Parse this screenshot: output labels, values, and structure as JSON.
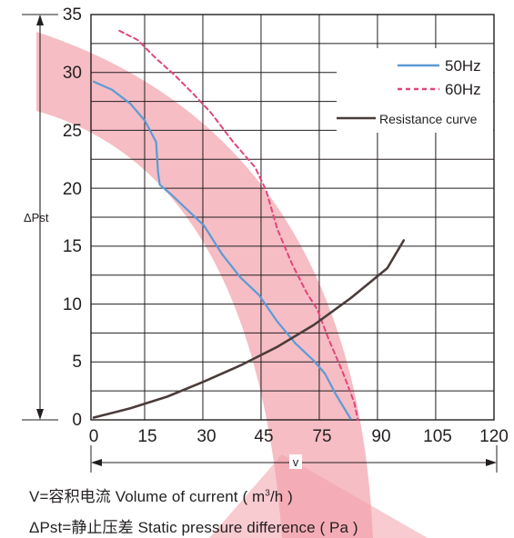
{
  "chart_data": {
    "type": "line",
    "title": "",
    "xlabel": "V",
    "ylabel": "ΔPst",
    "xlim": [
      0,
      120
    ],
    "ylim": [
      0,
      35
    ],
    "x_ticks": [
      "0",
      "15",
      "30",
      "45",
      "75",
      "90",
      "105",
      "120"
    ],
    "x_tick_values": [
      0,
      15,
      30,
      45,
      75,
      90,
      105,
      120
    ],
    "y_ticks": [
      "0",
      "5",
      "10",
      "15",
      "20",
      "25",
      "30",
      "35"
    ],
    "y_tick_values": [
      0,
      5,
      10,
      15,
      20,
      25,
      30,
      35
    ],
    "grid": true,
    "legend_position": "top-right",
    "series": [
      {
        "name": "50Hz",
        "color": "#5b9bd5",
        "style": "solid",
        "points": [
          [
            0,
            29.2
          ],
          [
            5,
            28.5
          ],
          [
            10,
            27.3
          ],
          [
            14,
            25.8
          ],
          [
            17,
            24.0
          ],
          [
            17.5,
            21.5
          ],
          [
            18,
            20.3
          ],
          [
            21,
            19.5
          ],
          [
            25,
            18.3
          ],
          [
            30,
            16.8
          ],
          [
            35,
            14.3
          ],
          [
            40,
            12.3
          ],
          [
            45,
            10.8
          ],
          [
            50,
            8.5
          ],
          [
            55,
            6.6
          ],
          [
            60,
            5.1
          ],
          [
            63,
            4.0
          ],
          [
            66,
            2.2
          ],
          [
            70,
            0.1
          ]
        ]
      },
      {
        "name": "60Hz",
        "color": "#e0457d",
        "style": "dashed",
        "points": [
          [
            7,
            33.6
          ],
          [
            12,
            32.8
          ],
          [
            17,
            31.2
          ],
          [
            22,
            29.8
          ],
          [
            27,
            28.2
          ],
          [
            32,
            26.5
          ],
          [
            38,
            24.0
          ],
          [
            44,
            21.8
          ],
          [
            47,
            19.8
          ],
          [
            50,
            16.5
          ],
          [
            54,
            13.5
          ],
          [
            58,
            11.0
          ],
          [
            61,
            9.5
          ],
          [
            64,
            7.0
          ],
          [
            68,
            4.0
          ],
          [
            71,
            1.5
          ],
          [
            72,
            0.0
          ]
        ]
      },
      {
        "name": "Resistance curve",
        "color": "#4a3c3a",
        "style": "solid",
        "points": [
          [
            0,
            0.2
          ],
          [
            10,
            1.0
          ],
          [
            20,
            2.0
          ],
          [
            30,
            3.3
          ],
          [
            40,
            4.7
          ],
          [
            50,
            6.3
          ],
          [
            60,
            8.2
          ],
          [
            70,
            10.5
          ],
          [
            80,
            13.1
          ],
          [
            84.5,
            15.5
          ]
        ]
      }
    ]
  },
  "captions": {
    "volume_prefix": "V=容积电流 Volume of current ( m",
    "volume_sup": "3",
    "volume_suffix": "/h )",
    "pressure": "ΔPst=静止压差 Static pressure difference ( Pa )"
  }
}
